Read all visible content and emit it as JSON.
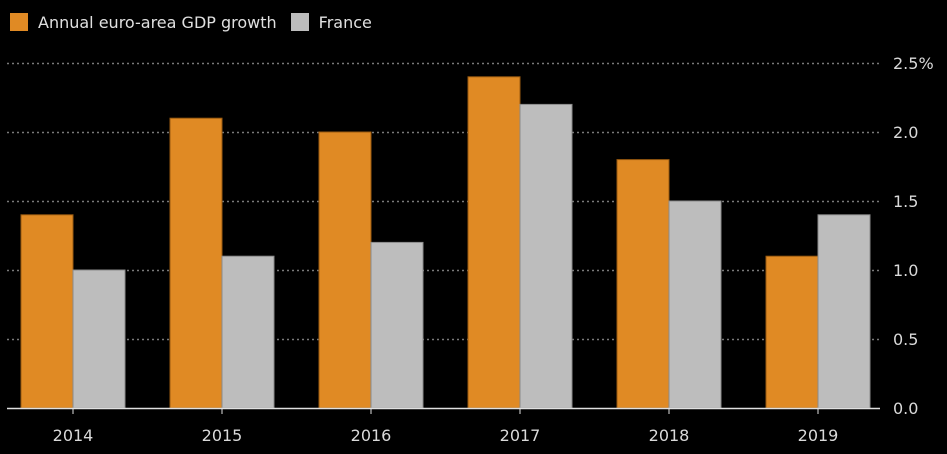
{
  "chart_data": {
    "type": "bar",
    "title": "",
    "xlabel": "",
    "ylabel": "",
    "categories": [
      "2014",
      "2015",
      "2016",
      "2017",
      "2018",
      "2019"
    ],
    "series": [
      {
        "name": "Annual euro-area GDP growth",
        "color": "#e08a24",
        "values": [
          1.4,
          2.1,
          2.0,
          2.4,
          1.8,
          1.1
        ]
      },
      {
        "name": "France",
        "color": "#bdbdbd",
        "values": [
          1.0,
          1.1,
          1.2,
          2.2,
          1.5,
          1.4
        ]
      }
    ],
    "ylim": [
      0,
      2.5
    ],
    "yticks": [
      0.0,
      0.5,
      1.0,
      1.5,
      2.0,
      2.5
    ],
    "ytick_labels": [
      "0.0",
      "0.5",
      "1.0",
      "1.5",
      "2.0",
      "2.5%"
    ],
    "grid": true,
    "legend_position": "top-left",
    "yaxis_side": "right"
  },
  "colors": {
    "background": "#000000",
    "grid": "#7a7a7a",
    "axis": "#e0e0e0",
    "text": "#d9d9d9"
  }
}
